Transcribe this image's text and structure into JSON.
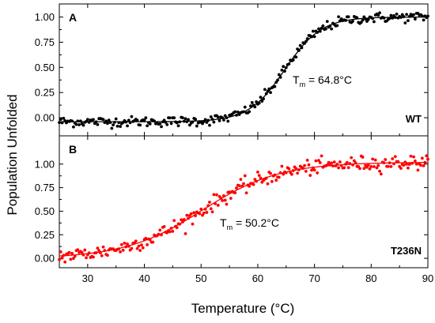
{
  "chart_data": {
    "type": "scatter",
    "xlabel": "Temperature (°C)",
    "ylabel": "Population Unfolded",
    "xlim": [
      25,
      90
    ],
    "x_ticks": [
      30,
      40,
      50,
      60,
      70,
      80,
      90
    ],
    "shared_x_axis": true,
    "grid": false,
    "panels": [
      {
        "letter": "A",
        "label": "WT",
        "tm_prefix": "T",
        "tm_sub": "m",
        "tm_value": " = 64.8°C",
        "tm": 64.8,
        "ylim": [
          -0.18,
          1.13
        ],
        "y_ticks": [
          "0.00",
          "0.25",
          "0.50",
          "0.75",
          "1.00"
        ],
        "y_tick_values": [
          0,
          0.25,
          0.5,
          0.75,
          1.0
        ],
        "color": "#000000",
        "fit_type": "sigmoidal",
        "fit_width": 3.2,
        "noise": 0.025,
        "x": [
          25,
          26,
          27,
          28,
          29,
          30,
          31,
          32,
          33,
          34,
          35,
          36,
          37,
          38,
          39,
          40,
          41,
          42,
          43,
          44,
          45,
          46,
          47,
          48,
          49,
          50,
          51,
          52,
          53,
          54,
          55,
          56,
          57,
          58,
          59,
          60,
          61,
          62,
          63,
          64,
          65,
          66,
          67,
          68,
          69,
          70,
          71,
          72,
          73,
          74,
          75,
          76,
          77,
          78,
          79,
          80,
          81,
          82,
          83,
          84,
          85,
          86,
          87,
          88,
          89,
          90
        ],
        "y": [
          -0.05,
          -0.04,
          -0.05,
          -0.03,
          -0.06,
          -0.04,
          -0.04,
          -0.05,
          -0.03,
          -0.04,
          -0.05,
          -0.04,
          -0.03,
          -0.04,
          -0.05,
          -0.03,
          -0.04,
          -0.04,
          -0.03,
          -0.05,
          -0.03,
          -0.03,
          -0.04,
          -0.03,
          -0.03,
          -0.02,
          -0.03,
          -0.02,
          -0.01,
          0.0,
          0.01,
          0.03,
          0.04,
          0.07,
          0.1,
          0.15,
          0.22,
          0.31,
          0.41,
          0.51,
          0.61,
          0.71,
          0.79,
          0.86,
          0.9,
          0.94,
          0.96,
          0.98,
          0.98,
          0.99,
          0.99,
          1.0,
          1.0,
          1.0,
          1.0,
          1.01,
          1.0,
          1.0,
          1.0,
          1.01,
          1.0,
          1.0,
          1.01,
          1.0,
          1.0,
          1.0
        ]
      },
      {
        "letter": "B",
        "label": "T236N",
        "tm_prefix": "T",
        "tm_sub": "m",
        "tm_value": " = 50.2°C",
        "tm": 50.2,
        "ylim": [
          -0.1,
          1.3
        ],
        "y_ticks": [
          "0.00",
          "0.25",
          "0.50",
          "0.75",
          "1.00"
        ],
        "y_tick_values": [
          0,
          0.25,
          0.5,
          0.75,
          1.0
        ],
        "color": "#ff0000",
        "fit_type": "sigmoidal",
        "fit_width": 6.8,
        "noise": 0.04,
        "x": [
          25,
          26,
          27,
          28,
          29,
          30,
          31,
          32,
          33,
          34,
          35,
          36,
          37,
          38,
          39,
          40,
          41,
          42,
          43,
          44,
          45,
          46,
          47,
          48,
          49,
          50,
          51,
          52,
          53,
          54,
          55,
          56,
          57,
          58,
          59,
          60,
          61,
          62,
          63,
          64,
          65,
          66,
          67,
          68,
          69,
          70,
          71,
          72,
          73,
          74,
          75,
          76,
          77,
          78,
          79,
          80,
          81,
          82,
          83,
          84,
          85,
          86,
          87,
          88,
          89,
          90
        ],
        "y": [
          0.02,
          0.03,
          0.04,
          0.04,
          0.05,
          0.06,
          0.07,
          0.07,
          0.08,
          0.09,
          0.09,
          0.1,
          0.11,
          0.12,
          0.14,
          0.15,
          0.17,
          0.19,
          0.22,
          0.26,
          0.3,
          0.34,
          0.38,
          0.42,
          0.46,
          0.5,
          0.54,
          0.58,
          0.62,
          0.66,
          0.69,
          0.72,
          0.75,
          0.77,
          0.79,
          0.81,
          0.83,
          0.85,
          0.87,
          0.88,
          0.89,
          0.91,
          0.92,
          0.93,
          0.94,
          0.95,
          0.96,
          0.97,
          0.97,
          0.98,
          0.98,
          0.99,
          0.99,
          1.0,
          1.0,
          1.0,
          1.0,
          1.01,
          1.01,
          1.01,
          1.01,
          1.01,
          1.01,
          1.01,
          1.01,
          1.01
        ]
      }
    ]
  }
}
